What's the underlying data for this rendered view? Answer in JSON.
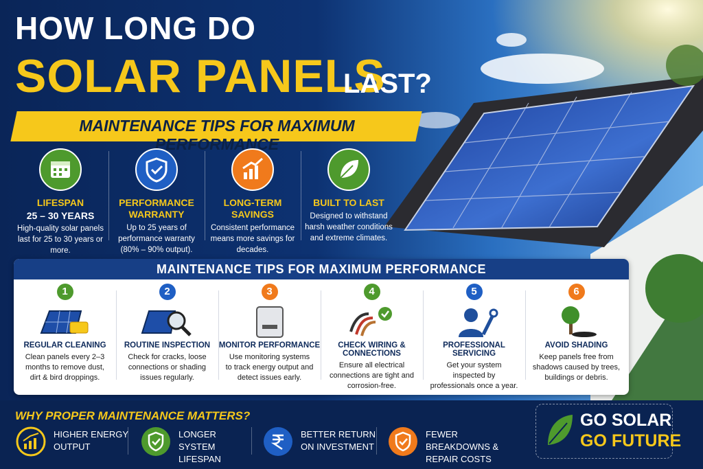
{
  "header": {
    "line1": "HOW LONG DO",
    "line2": "SOLAR PANELS",
    "line2_suffix": "LAST?",
    "banner": "MAINTENANCE TIPS FOR MAXIMUM PERFORMANCE"
  },
  "features": [
    {
      "title": "LIFESPAN",
      "subtitle": "25 – 30 YEARS",
      "text": "High-quality solar panels last for 25 to 30 years or more."
    },
    {
      "title": "PERFORMANCE WARRANTY",
      "text": "Up to 25 years of performance warranty (80% – 90% output)."
    },
    {
      "title": "LONG-TERM SAVINGS",
      "text": "Consistent performance means more savings for decades."
    },
    {
      "title": "BUILT TO LAST",
      "text": "Designed to withstand harsh weather conditions and extreme climates."
    }
  ],
  "tips": {
    "title": "MAINTENANCE TIPS FOR MAXIMUM PERFORMANCE",
    "items": [
      {
        "number": "1",
        "title": "REGULAR CLEANING",
        "text": "Clean panels every 2–3 months to remove dust, dirt & bird droppings."
      },
      {
        "number": "2",
        "title": "ROUTINE INSPECTION",
        "text": "Check for cracks, loose connections or shading issues regularly."
      },
      {
        "number": "3",
        "title": "MONITOR PERFORMANCE",
        "text": "Use monitoring systems to track energy output and detect issues early."
      },
      {
        "number": "4",
        "title": "CHECK WIRING & CONNECTIONS",
        "text": "Ensure all electrical connections are tight and corrosion-free."
      },
      {
        "number": "5",
        "title": "PROFESSIONAL SERVICING",
        "text": "Get your system inspected by professionals once a year."
      },
      {
        "number": "6",
        "title": "AVOID SHADING",
        "text": "Keep panels free from shadows caused by trees, buildings or debris."
      }
    ]
  },
  "footer": {
    "title": "WHY PROPER MAINTENANCE MATTERS?",
    "items": [
      "HIGHER ENERGY OUTPUT",
      "LONGER SYSTEM LIFESPAN",
      "BETTER RETURN ON INVESTMENT",
      "FEWER BREAKDOWNS & REPAIR COSTS"
    ],
    "cta": [
      "GO SOLAR",
      "GO FUTURE"
    ]
  }
}
